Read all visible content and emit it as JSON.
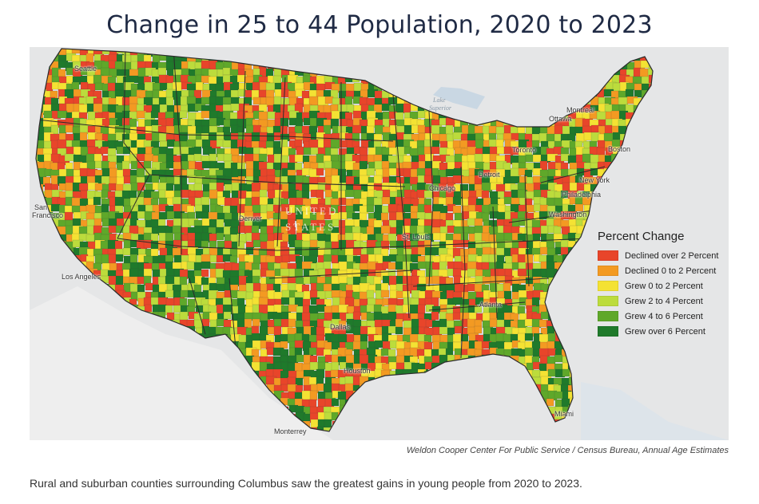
{
  "title": "Change in 25 to 44 Population, 2020 to 2023",
  "legend": {
    "title": "Percent Change",
    "items": [
      {
        "label": "Declined over 2 Percent",
        "color": "#e8452a"
      },
      {
        "label": "Declined 0 to 2 Percent",
        "color": "#f39a22"
      },
      {
        "label": "Grew 0 to 2 Percent",
        "color": "#f4e233"
      },
      {
        "label": "Grew 2 to 4 Percent",
        "color": "#bcdc3c"
      },
      {
        "label": "Grew 4 to 6 Percent",
        "color": "#5fa82a"
      },
      {
        "label": "Grew over 6 Percent",
        "color": "#1f7a2b"
      }
    ]
  },
  "cities": {
    "seattle": "Seattle",
    "montreal": "Montreal",
    "ottawa": "Ottawa",
    "toronto": "Toronto",
    "boston": "Boston",
    "newyork": "New York",
    "detroit": "Detroit",
    "chicago": "Chicago",
    "philadelphia": "Philadelphia",
    "washington": "Washington",
    "sanfrancisco_1": "San",
    "sanfrancisco_2": "Francisco",
    "denver": "Denver",
    "stlouis": "St. Louis",
    "losangeles": "Los Angeles",
    "atlanta": "Atlanta",
    "dallas": "Dallas",
    "houston": "Houston",
    "miami": "Miami",
    "monterrey": "Monterrey"
  },
  "watermark": {
    "line1": "UNITED",
    "line2": "STATES"
  },
  "lake_label": {
    "line1": "Lake",
    "line2": "Superior"
  },
  "source": "Weldon Cooper Center For Public Service  /  Census Bureau, Annual Age Estimates",
  "caption": "Rural and suburban counties surrounding Columbus saw the greatest gains in young people from 2020 to 2023."
}
